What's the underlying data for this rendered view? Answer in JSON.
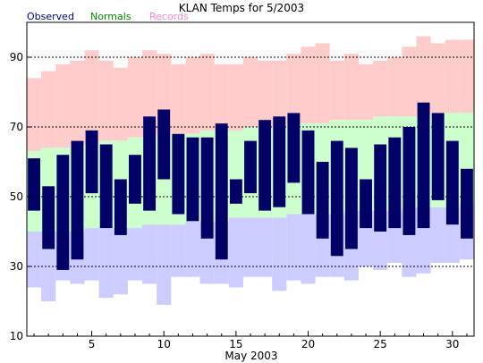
{
  "chart_data": {
    "type": "bar",
    "title": "KLAN Temps for 5/2003",
    "xlabel": "May 2003",
    "ylabel": "",
    "xlim": [
      0.5,
      31.5
    ],
    "ylim": [
      10,
      100
    ],
    "yticks": [
      10,
      30,
      50,
      70,
      90
    ],
    "xticks": [
      5,
      10,
      15,
      20,
      25,
      30
    ],
    "grid": "dashed horizontal at 30, 50, 70, 90",
    "legend": "top-left",
    "colors": {
      "records": "#ffcccc",
      "normals": "#ccffcc",
      "observed": "#000066",
      "records_low": "#ccccff",
      "records_legend": "#ee88cc",
      "normals_legend": "#008800",
      "observed_legend": "#000080"
    },
    "legend_labels": {
      "observed": "Observed",
      "normals": "Normals",
      "records": "Records"
    },
    "days": [
      1,
      2,
      3,
      4,
      5,
      6,
      7,
      8,
      9,
      10,
      11,
      12,
      13,
      14,
      15,
      16,
      17,
      18,
      19,
      20,
      21,
      22,
      23,
      24,
      25,
      26,
      27,
      28,
      29,
      30,
      31
    ],
    "series": [
      {
        "name": "Records",
        "high": [
          84,
          86,
          88,
          89,
          92,
          89,
          87,
          90,
          92,
          91,
          88,
          90,
          91,
          88,
          88,
          90,
          89,
          89,
          91,
          93,
          94,
          89,
          91,
          88,
          89,
          90,
          93,
          96,
          94,
          95,
          95
        ],
        "low": [
          24,
          20,
          26,
          25,
          26,
          21,
          22,
          26,
          25,
          19,
          27,
          27,
          25,
          25,
          24,
          27,
          27,
          23,
          26,
          25,
          27,
          27,
          26,
          30,
          29,
          31,
          27,
          28,
          31,
          31,
          32
        ]
      },
      {
        "name": "Normals",
        "high": [
          63,
          64,
          64,
          65,
          65,
          66,
          66,
          67,
          67,
          68,
          68,
          68,
          69,
          69,
          69,
          70,
          70,
          70,
          71,
          71,
          71,
          72,
          72,
          72,
          73,
          73,
          73,
          73,
          74,
          74,
          74
        ],
        "low": [
          40,
          40,
          40,
          40,
          41,
          41,
          41,
          41,
          42,
          42,
          42,
          43,
          43,
          43,
          44,
          44,
          44,
          44,
          45,
          45,
          45,
          45,
          46,
          46,
          46,
          46,
          47,
          47,
          47,
          47,
          48
        ]
      },
      {
        "name": "Observed",
        "high": [
          61,
          53,
          62,
          66,
          69,
          65,
          55,
          62,
          73,
          75,
          68,
          67,
          67,
          71,
          55,
          66,
          72,
          73,
          74,
          69,
          60,
          66,
          64,
          55,
          65,
          67,
          70,
          77,
          74,
          66,
          58
        ],
        "low": [
          46,
          35,
          29,
          32,
          51,
          41,
          39,
          48,
          46,
          55,
          45,
          43,
          38,
          32,
          48,
          51,
          46,
          47,
          54,
          45,
          38,
          33,
          35,
          41,
          40,
          41,
          39,
          41,
          49,
          42,
          38
        ]
      }
    ]
  }
}
